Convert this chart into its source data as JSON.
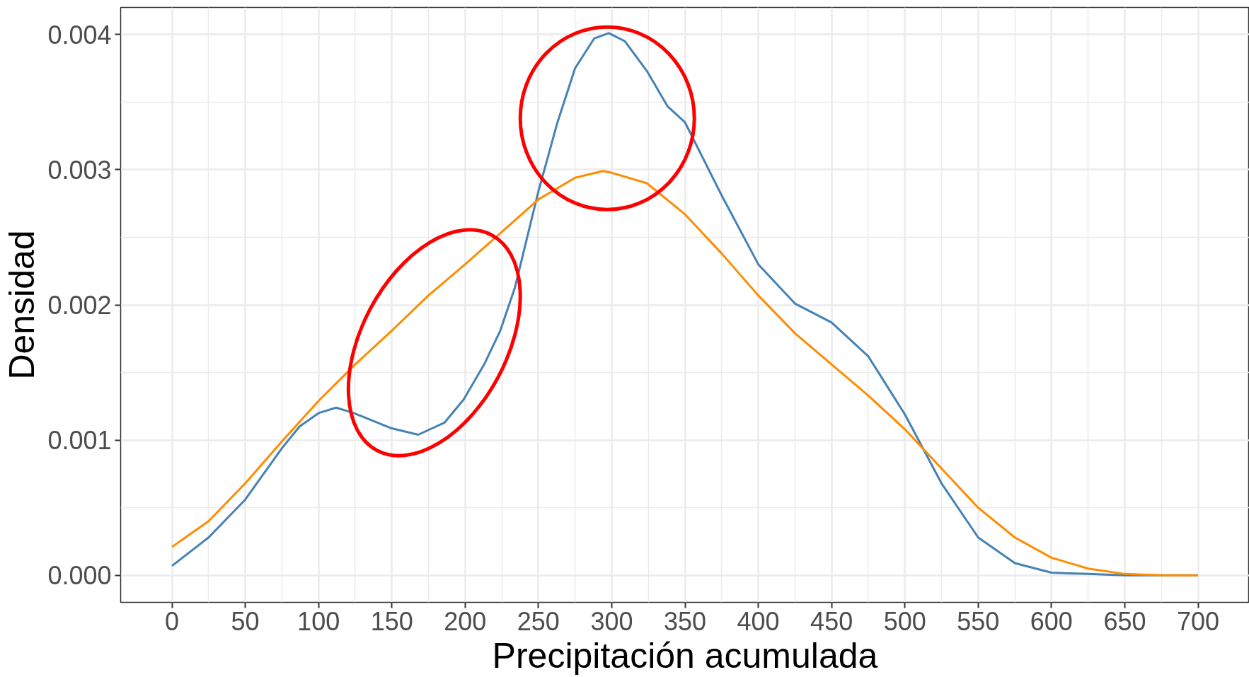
{
  "chart_data": {
    "type": "line",
    "xlabel": "Precipitación acumulada",
    "ylabel": "Densidad",
    "xlim": [
      -35,
      735
    ],
    "ylim": [
      -0.0002,
      0.0042
    ],
    "xticks": [
      0,
      50,
      100,
      150,
      200,
      250,
      300,
      350,
      400,
      450,
      500,
      550,
      600,
      650,
      700
    ],
    "yticks": [
      {
        "value": 0,
        "label": "0.000"
      },
      {
        "value": 0.001,
        "label": "0.001"
      },
      {
        "value": 0.002,
        "label": "0.002"
      },
      {
        "value": 0.003,
        "label": "0.003"
      },
      {
        "value": 0.004,
        "label": "0.004"
      }
    ],
    "grid": true,
    "line_style": "solid",
    "series": [
      {
        "color": "#4682b4",
        "x": [
          0,
          25,
          50,
          75,
          87,
          100,
          112,
          124,
          149,
          168,
          186,
          199,
          213,
          224,
          234,
          250,
          263,
          275,
          288,
          298,
          309,
          324,
          338,
          350,
          375,
          400,
          425,
          450,
          475,
          500,
          525,
          550,
          575,
          600,
          625,
          650,
          675,
          700
        ],
        "values": [
          7e-05,
          0.00028,
          0.00056,
          0.00094,
          0.0011,
          0.0012,
          0.00124,
          0.0012,
          0.00109,
          0.00104,
          0.00113,
          0.0013,
          0.00156,
          0.00181,
          0.00213,
          0.00284,
          0.00335,
          0.00375,
          0.00397,
          0.00401,
          0.00395,
          0.00373,
          0.00347,
          0.00335,
          0.00281,
          0.0023,
          0.00201,
          0.00187,
          0.00162,
          0.00119,
          0.00068,
          0.00028,
          9e-05,
          2e-05,
          1e-05,
          0,
          0,
          0
        ]
      },
      {
        "color": "#ff8c00",
        "x": [
          0,
          25,
          50,
          75,
          100,
          125,
          150,
          175,
          200,
          225,
          250,
          275,
          294,
          299,
          324,
          350,
          375,
          400,
          425,
          450,
          475,
          500,
          525,
          550,
          575,
          600,
          625,
          650,
          675,
          700
        ],
        "values": [
          0.00021,
          0.0004,
          0.00068,
          0.00099,
          0.00129,
          0.00156,
          0.00181,
          0.00207,
          0.0023,
          0.00254,
          0.00278,
          0.00294,
          0.00299,
          0.00298,
          0.0029,
          0.00267,
          0.00238,
          0.00207,
          0.00179,
          0.00156,
          0.00133,
          0.00108,
          0.00079,
          0.0005,
          0.00028,
          0.00013,
          5e-05,
          1e-05,
          0,
          0
        ]
      }
    ]
  }
}
